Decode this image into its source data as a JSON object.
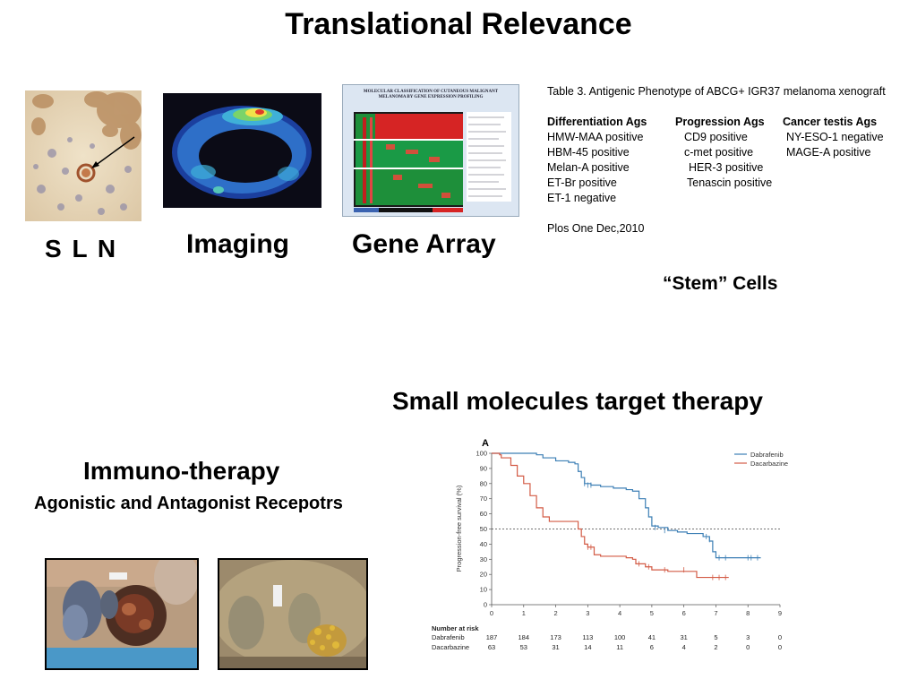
{
  "slide": {
    "title": "Translational Relevance",
    "captions": {
      "sln": "S L N",
      "imaging": "Imaging",
      "gene_array": "Gene  Array",
      "stem_cells": "“Stem” Cells",
      "small_molecules": "Small  molecules  target  therapy",
      "immuno_title": "Immuno-therapy",
      "immuno_subtitle": "Agonistic and  Antagonist Recepotrs"
    },
    "gene_array_header": {
      "line1": "MOLECULAR CLASSIFICATION OF CUTANEOUS MALIGNANT",
      "line2": "MELANOMA BY GENE EXPRESSION PROFILING"
    }
  },
  "table3": {
    "title": "Table 3. Antigenic Phenotype of ABCG+ IGR37  melanoma xenograft",
    "headers": [
      "Differentiation Ags",
      "Progression Ags",
      "Cancer testis  Ags"
    ],
    "rows": [
      [
        "HMW-MAA positive",
        "CD9 positive",
        "NY-ESO-1 negative"
      ],
      [
        "HBM-45 positive",
        "c-met positive",
        "MAGE-A positive"
      ],
      [
        "Melan-A positive",
        "HER-3 positive",
        ""
      ],
      [
        "ET-Br positive",
        "Tenascin positive",
        ""
      ],
      [
        "ET-1 negative",
        "",
        ""
      ]
    ],
    "citation": "Plos One Dec,2010"
  },
  "chart_data": {
    "type": "line",
    "panel_label": "A",
    "ylabel": "Progression-free survival (%)",
    "xlabel": "",
    "xlim": [
      0,
      9
    ],
    "ylim": [
      0,
      100
    ],
    "x_ticks": [
      "0",
      "1",
      "2",
      "3",
      "4",
      "5",
      "6",
      "7",
      "8",
      "9"
    ],
    "y_ticks": [
      "0",
      "10",
      "20",
      "30",
      "40",
      "50",
      "60",
      "70",
      "80",
      "90",
      "100"
    ],
    "reference_line_y": 50,
    "legend_position": "top-right",
    "series": [
      {
        "name": "Dabrafenib",
        "color": "#3c7fb5",
        "points": [
          [
            0,
            100
          ],
          [
            1.2,
            100
          ],
          [
            1.4,
            99
          ],
          [
            1.6,
            97
          ],
          [
            2.0,
            95
          ],
          [
            2.4,
            94
          ],
          [
            2.6,
            93
          ],
          [
            2.7,
            88
          ],
          [
            2.8,
            84
          ],
          [
            2.9,
            80
          ],
          [
            3.1,
            79
          ],
          [
            3.4,
            78
          ],
          [
            3.8,
            77
          ],
          [
            4.2,
            76
          ],
          [
            4.4,
            75
          ],
          [
            4.6,
            70
          ],
          [
            4.8,
            64
          ],
          [
            4.9,
            58
          ],
          [
            5.0,
            52
          ],
          [
            5.2,
            51
          ],
          [
            5.5,
            49
          ],
          [
            5.8,
            48
          ],
          [
            6.1,
            47
          ],
          [
            6.6,
            45
          ],
          [
            6.8,
            42
          ],
          [
            6.9,
            35
          ],
          [
            7.0,
            31
          ],
          [
            7.5,
            31
          ],
          [
            8.0,
            31
          ],
          [
            8.4,
            31
          ]
        ],
        "censored": [
          [
            2.9,
            80
          ],
          [
            3.0,
            79
          ],
          [
            3.1,
            79
          ],
          [
            5.1,
            51
          ],
          [
            5.4,
            49
          ],
          [
            6.7,
            45
          ],
          [
            6.8,
            43
          ],
          [
            7.1,
            31
          ],
          [
            7.3,
            31
          ],
          [
            8.0,
            31
          ],
          [
            8.1,
            31
          ],
          [
            8.3,
            31
          ]
        ]
      },
      {
        "name": "Dacarbazine",
        "color": "#d35b45",
        "points": [
          [
            0,
            100
          ],
          [
            0.2,
            100
          ],
          [
            0.25,
            99
          ],
          [
            0.3,
            97
          ],
          [
            0.6,
            92
          ],
          [
            0.8,
            85
          ],
          [
            1.0,
            80
          ],
          [
            1.2,
            72
          ],
          [
            1.4,
            64
          ],
          [
            1.6,
            58
          ],
          [
            1.8,
            55
          ],
          [
            2.6,
            55
          ],
          [
            2.7,
            50
          ],
          [
            2.8,
            45
          ],
          [
            2.9,
            40
          ],
          [
            3.0,
            38
          ],
          [
            3.2,
            33
          ],
          [
            3.4,
            32
          ],
          [
            4.2,
            31
          ],
          [
            4.4,
            30
          ],
          [
            4.5,
            27
          ],
          [
            4.8,
            25
          ],
          [
            5.0,
            23
          ],
          [
            5.5,
            22
          ],
          [
            6.3,
            22
          ],
          [
            6.4,
            18
          ],
          [
            7.4,
            18
          ]
        ],
        "censored": [
          [
            3.0,
            38
          ],
          [
            3.1,
            38
          ],
          [
            4.6,
            27
          ],
          [
            4.9,
            25
          ],
          [
            5.4,
            23
          ],
          [
            6.0,
            23
          ],
          [
            6.9,
            18
          ],
          [
            7.1,
            18
          ],
          [
            7.3,
            18
          ]
        ]
      }
    ],
    "risk_table": {
      "title": "Number at risk",
      "rows": [
        {
          "label": "Dabrafenib",
          "values": [
            "187",
            "184",
            "173",
            "113",
            "100",
            "41",
            "31",
            "5",
            "3",
            "0"
          ]
        },
        {
          "label": "Dacarbazine",
          "values": [
            "63",
            "53",
            "31",
            "14",
            "11",
            "6",
            "4",
            "2",
            "0",
            "0"
          ]
        }
      ]
    }
  }
}
